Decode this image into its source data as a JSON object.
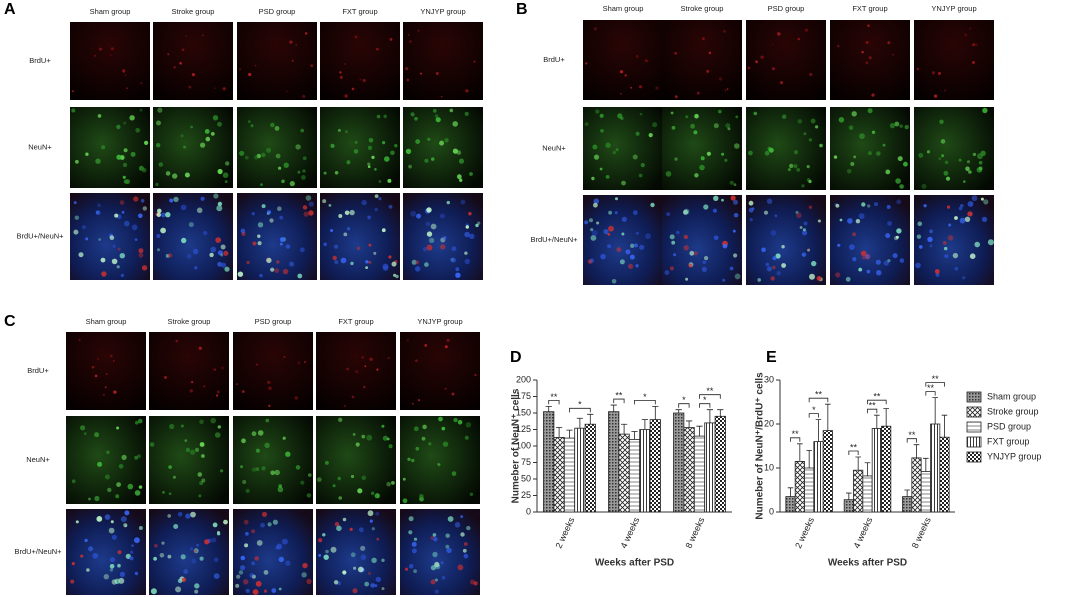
{
  "panels": [
    {
      "label": "A",
      "columns": [
        "Sham group",
        "Stroke group",
        "PSD group",
        "FXT group",
        "YNJYP  group"
      ],
      "rows": [
        "BrdU+",
        "NeuN+",
        "BrdU+/NeuN+"
      ]
    },
    {
      "label": "B",
      "columns": [
        "Sham group",
        "Stroke group",
        "PSD group",
        "FXT group",
        "YNJYP  group"
      ],
      "rows": [
        "BrdU+",
        "NeuN+",
        "BrdU+/NeuN+"
      ]
    },
    {
      "label": "C",
      "columns": [
        "Sham group",
        "Stroke group",
        "PSD group",
        "FXT group",
        "YNJYP  group"
      ],
      "rows": [
        "BrdU+",
        "NeuN+",
        "BrdU+/NeuN+"
      ]
    }
  ],
  "chart_data": [
    {
      "type": "bar",
      "label": "D",
      "ylabel": "Numeber of NeuN⁺ cells",
      "xlabel": "Weeks after PSD",
      "categories": [
        "2 weeks",
        "4 weeks",
        "8 weeks"
      ],
      "series": [
        {
          "pattern": "dots",
          "values": [
            152,
            152,
            150
          ],
          "errors": [
            8,
            10,
            5
          ]
        },
        {
          "pattern": "cross",
          "values": [
            113,
            118,
            128
          ],
          "errors": [
            15,
            15,
            10
          ]
        },
        {
          "pattern": "hlines",
          "values": [
            112,
            110,
            115
          ],
          "errors": [
            12,
            12,
            15
          ]
        },
        {
          "pattern": "vlines",
          "values": [
            127,
            125,
            135
          ],
          "errors": [
            15,
            15,
            20
          ]
        },
        {
          "pattern": "checker",
          "values": [
            133,
            140,
            145
          ],
          "errors": [
            15,
            20,
            10
          ]
        }
      ],
      "ylim": [
        0,
        200
      ],
      "yticks": [
        0,
        25,
        50,
        75,
        100,
        125,
        150,
        175,
        200
      ],
      "annotations": [
        {
          "text": "**",
          "category": 0,
          "from": 0,
          "to": 1
        },
        {
          "text": "*",
          "category": 0,
          "from": 2,
          "to": 4
        },
        {
          "text": "**",
          "category": 1,
          "from": 0,
          "to": 1
        },
        {
          "text": "*",
          "category": 1,
          "from": 2,
          "to": 4
        },
        {
          "text": "*",
          "category": 2,
          "from": 0,
          "to": 1
        },
        {
          "text": "*",
          "category": 2,
          "from": 2,
          "to": 3
        },
        {
          "text": "**",
          "category": 2,
          "from": 2,
          "to": 4
        }
      ]
    },
    {
      "type": "bar",
      "label": "E",
      "ylabel": "Numeber of NeuN⁺/BrdU⁺ cells",
      "xlabel": "Weeks after PSD",
      "categories": [
        "2 weeks",
        "4 weeks",
        "8 weeks"
      ],
      "series": [
        {
          "name": "Sham  group",
          "pattern": "dots",
          "values": [
            3.5,
            2.8,
            3.5
          ],
          "errors": [
            2,
            1.5,
            1.5
          ]
        },
        {
          "name": "Stroke group",
          "pattern": "cross",
          "values": [
            11.5,
            9.5,
            12.3
          ],
          "errors": [
            4,
            3,
            3
          ]
        },
        {
          "name": "PSD group",
          "pattern": "hlines",
          "values": [
            10,
            8.2,
            9.2
          ],
          "errors": [
            4,
            3,
            3
          ]
        },
        {
          "name": "FXT group",
          "pattern": "vlines",
          "values": [
            16,
            19,
            20
          ],
          "errors": [
            5,
            3,
            6
          ]
        },
        {
          "name": "YNJYP group",
          "pattern": "checker",
          "values": [
            18.5,
            19.5,
            17
          ],
          "errors": [
            6,
            4,
            5
          ]
        }
      ],
      "ylim": [
        0,
        30
      ],
      "yticks": [
        0,
        10,
        20,
        30
      ],
      "legend": "right",
      "annotations": [
        {
          "text": "**",
          "category": 0,
          "from": 0,
          "to": 1
        },
        {
          "text": "*",
          "category": 0,
          "from": 2,
          "to": 3
        },
        {
          "text": "**",
          "category": 0,
          "from": 2,
          "to": 4
        },
        {
          "text": "**",
          "category": 1,
          "from": 0,
          "to": 1
        },
        {
          "text": "**",
          "category": 1,
          "from": 2,
          "to": 3
        },
        {
          "text": "**",
          "category": 1,
          "from": 2,
          "to": 4
        },
        {
          "text": "**",
          "category": 2,
          "from": 0,
          "to": 1
        },
        {
          "text": "**",
          "category": 2,
          "from": 2,
          "to": 3
        },
        {
          "text": "**",
          "category": 2,
          "from": 2,
          "to": 4
        }
      ]
    }
  ]
}
